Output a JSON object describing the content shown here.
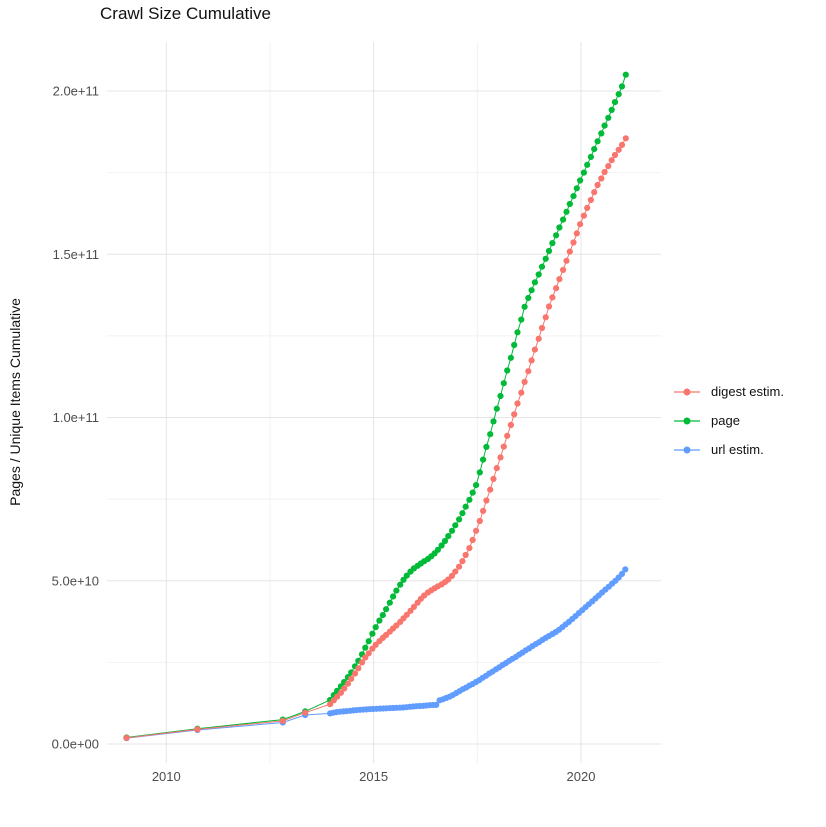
{
  "page": {
    "title": "Crawl Size Cumulative"
  },
  "palette": {
    "digest": "#F8766D",
    "page": "#00BA38",
    "url": "#619CFF",
    "grid_major": "#E5E5E5",
    "grid_minor": "#F2F2F2",
    "tick_label": "#4D4D4D",
    "title_text": "#111111"
  },
  "chart_data": {
    "type": "scatter",
    "title": "Crawl Size Cumulative",
    "xlabel": "",
    "ylabel": "Pages / Unique Items Cumulative",
    "grid": true,
    "legend_position": "right",
    "units_note": "y values stored in billions (1e9); y axis shown in scientific notation",
    "xlim": [
      2008.57,
      2021.93
    ],
    "ylim_e9": [
      -5.8,
      215
    ],
    "x_ticks": [
      {
        "value": 2010,
        "label": "2010"
      },
      {
        "value": 2015,
        "label": "2015"
      },
      {
        "value": 2020,
        "label": "2020"
      }
    ],
    "x_minor": [
      2012.5,
      2017.5
    ],
    "y_ticks": [
      {
        "value": 0,
        "label": "0.0e+00"
      },
      {
        "value": 50,
        "label": "5.0e+10"
      },
      {
        "value": 100,
        "label": "1.0e+11"
      },
      {
        "value": 150,
        "label": "1.5e+11"
      },
      {
        "value": 200,
        "label": "2.0e+11"
      }
    ],
    "y_minor": [
      25,
      75,
      125,
      175
    ],
    "legend": [
      {
        "id": "digest",
        "label": "digest estim."
      },
      {
        "id": "page",
        "label": "page"
      },
      {
        "id": "url",
        "label": "url estim."
      }
    ],
    "series": [
      {
        "name": "page",
        "color_id": "page",
        "points": [
          [
            2009.04,
            2.0
          ],
          [
            2010.75,
            4.7
          ],
          [
            2012.81,
            7.5
          ],
          [
            2013.35,
            10.0
          ],
          [
            2013.95,
            13.5
          ],
          [
            2014.04,
            15.0
          ],
          [
            2014.12,
            16.3
          ],
          [
            2014.21,
            17.7
          ],
          [
            2014.29,
            19.0
          ],
          [
            2014.38,
            20.5
          ],
          [
            2014.46,
            21.9
          ],
          [
            2014.55,
            23.8
          ],
          [
            2014.63,
            25.5
          ],
          [
            2014.72,
            27.5
          ],
          [
            2014.8,
            29.5
          ],
          [
            2014.88,
            31.5
          ],
          [
            2014.97,
            33.8
          ],
          [
            2015.05,
            35.8
          ],
          [
            2015.14,
            37.8
          ],
          [
            2015.22,
            39.5
          ],
          [
            2015.3,
            41.3
          ],
          [
            2015.39,
            43.3
          ],
          [
            2015.47,
            45.2
          ],
          [
            2015.55,
            47.0
          ],
          [
            2015.64,
            48.8
          ],
          [
            2015.72,
            50.3
          ],
          [
            2015.8,
            51.6
          ],
          [
            2015.89,
            52.8
          ],
          [
            2015.97,
            53.8
          ],
          [
            2016.06,
            54.6
          ],
          [
            2016.14,
            55.3
          ],
          [
            2016.22,
            56.0
          ],
          [
            2016.31,
            56.7
          ],
          [
            2016.39,
            57.5
          ],
          [
            2016.47,
            58.4
          ],
          [
            2016.55,
            59.5
          ],
          [
            2016.64,
            60.8
          ],
          [
            2016.72,
            62.2
          ],
          [
            2016.8,
            63.7
          ],
          [
            2016.89,
            65.3
          ],
          [
            2016.97,
            67.0
          ],
          [
            2017.06,
            68.8
          ],
          [
            2017.14,
            70.7
          ],
          [
            2017.22,
            72.7
          ],
          [
            2017.31,
            74.8
          ],
          [
            2017.39,
            77.0
          ],
          [
            2017.47,
            79.3
          ],
          [
            2017.56,
            83.2
          ],
          [
            2017.64,
            87.1
          ],
          [
            2017.72,
            91.0
          ],
          [
            2017.81,
            94.9
          ],
          [
            2017.89,
            98.8
          ],
          [
            2017.97,
            102.7
          ],
          [
            2018.06,
            106.6
          ],
          [
            2018.14,
            110.5
          ],
          [
            2018.22,
            114.4
          ],
          [
            2018.31,
            118.3
          ],
          [
            2018.39,
            122.2
          ],
          [
            2018.47,
            126.1
          ],
          [
            2018.56,
            130.0
          ],
          [
            2018.64,
            133.9
          ],
          [
            2018.73,
            136.6
          ],
          [
            2018.81,
            139.0
          ],
          [
            2018.89,
            141.4
          ],
          [
            2018.98,
            143.8
          ],
          [
            2019.06,
            146.2
          ],
          [
            2019.15,
            148.6
          ],
          [
            2019.23,
            151.0
          ],
          [
            2019.31,
            153.4
          ],
          [
            2019.4,
            155.8
          ],
          [
            2019.48,
            158.2
          ],
          [
            2019.57,
            160.6
          ],
          [
            2019.65,
            163.0
          ],
          [
            2019.73,
            165.4
          ],
          [
            2019.82,
            167.8
          ],
          [
            2019.9,
            170.2
          ],
          [
            2019.98,
            172.6
          ],
          [
            2020.07,
            175.0
          ],
          [
            2020.15,
            177.4
          ],
          [
            2020.24,
            179.8
          ],
          [
            2020.32,
            182.2
          ],
          [
            2020.4,
            184.6
          ],
          [
            2020.49,
            187.0
          ],
          [
            2020.57,
            189.4
          ],
          [
            2020.66,
            191.8
          ],
          [
            2020.74,
            194.2
          ],
          [
            2020.82,
            196.6
          ],
          [
            2020.91,
            199.0
          ],
          [
            2020.99,
            201.4
          ],
          [
            2021.08,
            205.0
          ]
        ]
      },
      {
        "name": "url estim.",
        "color_id": "url",
        "points": [
          [
            2009.04,
            1.8
          ],
          [
            2010.75,
            4.3
          ],
          [
            2012.81,
            6.6
          ],
          [
            2013.35,
            8.9
          ],
          [
            2013.95,
            9.4
          ],
          [
            2014.03,
            9.6
          ],
          [
            2014.11,
            9.8
          ],
          [
            2014.19,
            9.9
          ],
          [
            2014.27,
            10.0
          ],
          [
            2014.35,
            10.1
          ],
          [
            2014.43,
            10.2
          ],
          [
            2014.51,
            10.3
          ],
          [
            2014.59,
            10.4
          ],
          [
            2014.67,
            10.5
          ],
          [
            2014.75,
            10.55
          ],
          [
            2014.83,
            10.6
          ],
          [
            2014.91,
            10.7
          ],
          [
            2014.99,
            10.75
          ],
          [
            2015.07,
            10.8
          ],
          [
            2015.15,
            10.85
          ],
          [
            2015.23,
            10.9
          ],
          [
            2015.31,
            10.95
          ],
          [
            2015.39,
            11.0
          ],
          [
            2015.47,
            11.05
          ],
          [
            2015.55,
            11.1
          ],
          [
            2015.63,
            11.15
          ],
          [
            2015.71,
            11.2
          ],
          [
            2015.79,
            11.3
          ],
          [
            2015.87,
            11.4
          ],
          [
            2015.95,
            11.5
          ],
          [
            2016.03,
            11.6
          ],
          [
            2016.11,
            11.65
          ],
          [
            2016.19,
            11.7
          ],
          [
            2016.27,
            11.8
          ],
          [
            2016.35,
            11.9
          ],
          [
            2016.43,
            11.95
          ],
          [
            2016.51,
            12.0
          ],
          [
            2016.59,
            13.4
          ],
          [
            2016.67,
            13.7
          ],
          [
            2016.75,
            14.1
          ],
          [
            2016.83,
            14.5
          ],
          [
            2016.91,
            15.0
          ],
          [
            2016.99,
            15.6
          ],
          [
            2017.07,
            16.2
          ],
          [
            2017.15,
            16.8
          ],
          [
            2017.23,
            17.3
          ],
          [
            2017.31,
            17.9
          ],
          [
            2017.39,
            18.4
          ],
          [
            2017.47,
            19.0
          ],
          [
            2017.55,
            19.6
          ],
          [
            2017.63,
            20.3
          ],
          [
            2017.71,
            20.9
          ],
          [
            2017.79,
            21.6
          ],
          [
            2017.87,
            22.2
          ],
          [
            2017.95,
            22.9
          ],
          [
            2018.03,
            23.5
          ],
          [
            2018.11,
            24.2
          ],
          [
            2018.19,
            24.8
          ],
          [
            2018.27,
            25.5
          ],
          [
            2018.35,
            26.1
          ],
          [
            2018.43,
            26.7
          ],
          [
            2018.51,
            27.4
          ],
          [
            2018.59,
            28.0
          ],
          [
            2018.67,
            28.7
          ],
          [
            2018.75,
            29.3
          ],
          [
            2018.83,
            30.0
          ],
          [
            2018.91,
            30.6
          ],
          [
            2018.99,
            31.2
          ],
          [
            2019.07,
            31.9
          ],
          [
            2019.15,
            32.5
          ],
          [
            2019.23,
            33.1
          ],
          [
            2019.31,
            33.7
          ],
          [
            2019.39,
            34.3
          ],
          [
            2019.47,
            35.0
          ],
          [
            2019.55,
            35.8
          ],
          [
            2019.63,
            36.6
          ],
          [
            2019.71,
            37.4
          ],
          [
            2019.79,
            38.3
          ],
          [
            2019.87,
            39.2
          ],
          [
            2019.95,
            40.1
          ],
          [
            2020.03,
            41.0
          ],
          [
            2020.11,
            41.9
          ],
          [
            2020.19,
            42.8
          ],
          [
            2020.27,
            43.7
          ],
          [
            2020.35,
            44.6
          ],
          [
            2020.43,
            45.5
          ],
          [
            2020.51,
            46.4
          ],
          [
            2020.59,
            47.3
          ],
          [
            2020.67,
            48.2
          ],
          [
            2020.75,
            49.1
          ],
          [
            2020.83,
            50.0
          ],
          [
            2020.91,
            51.0
          ],
          [
            2020.99,
            52.1
          ],
          [
            2021.07,
            53.5
          ]
        ]
      },
      {
        "name": "digest estim.",
        "color_id": "digest",
        "points": [
          [
            2009.04,
            1.9
          ],
          [
            2010.75,
            4.5
          ],
          [
            2012.81,
            7.1
          ],
          [
            2013.35,
            9.6
          ],
          [
            2013.95,
            12.2
          ],
          [
            2014.04,
            13.4
          ],
          [
            2014.12,
            14.5
          ],
          [
            2014.21,
            15.7
          ],
          [
            2014.29,
            17.0
          ],
          [
            2014.38,
            18.5
          ],
          [
            2014.46,
            20.0
          ],
          [
            2014.55,
            21.6
          ],
          [
            2014.63,
            23.2
          ],
          [
            2014.72,
            25.0
          ],
          [
            2014.8,
            26.5
          ],
          [
            2014.88,
            27.8
          ],
          [
            2014.97,
            29.2
          ],
          [
            2015.05,
            30.4
          ],
          [
            2015.14,
            31.5
          ],
          [
            2015.22,
            32.5
          ],
          [
            2015.3,
            33.4
          ],
          [
            2015.39,
            34.4
          ],
          [
            2015.47,
            35.4
          ],
          [
            2015.55,
            36.3
          ],
          [
            2015.64,
            37.4
          ],
          [
            2015.72,
            38.5
          ],
          [
            2015.8,
            39.6
          ],
          [
            2015.89,
            40.8
          ],
          [
            2015.97,
            42.0
          ],
          [
            2016.06,
            43.3
          ],
          [
            2016.14,
            44.5
          ],
          [
            2016.22,
            45.5
          ],
          [
            2016.31,
            46.4
          ],
          [
            2016.39,
            47.1
          ],
          [
            2016.47,
            47.7
          ],
          [
            2016.55,
            48.3
          ],
          [
            2016.64,
            48.9
          ],
          [
            2016.72,
            49.6
          ],
          [
            2016.8,
            50.4
          ],
          [
            2016.89,
            51.5
          ],
          [
            2016.97,
            52.8
          ],
          [
            2017.06,
            54.3
          ],
          [
            2017.14,
            56.0
          ],
          [
            2017.22,
            57.9
          ],
          [
            2017.31,
            60.0
          ],
          [
            2017.39,
            62.5
          ],
          [
            2017.47,
            65.3
          ],
          [
            2017.56,
            68.3
          ],
          [
            2017.64,
            71.4
          ],
          [
            2017.72,
            74.6
          ],
          [
            2017.81,
            77.9
          ],
          [
            2017.89,
            81.2
          ],
          [
            2017.97,
            84.5
          ],
          [
            2018.06,
            87.8
          ],
          [
            2018.14,
            91.1
          ],
          [
            2018.22,
            94.4
          ],
          [
            2018.31,
            97.7
          ],
          [
            2018.39,
            101.0
          ],
          [
            2018.47,
            104.3
          ],
          [
            2018.56,
            107.6
          ],
          [
            2018.64,
            110.9
          ],
          [
            2018.73,
            114.2
          ],
          [
            2018.81,
            117.5
          ],
          [
            2018.89,
            120.8
          ],
          [
            2018.98,
            124.1
          ],
          [
            2019.06,
            127.4
          ],
          [
            2019.15,
            130.7
          ],
          [
            2019.23,
            134.0
          ],
          [
            2019.31,
            136.8
          ],
          [
            2019.4,
            139.6
          ],
          [
            2019.48,
            142.4
          ],
          [
            2019.57,
            145.2
          ],
          [
            2019.65,
            148.0
          ],
          [
            2019.73,
            150.8
          ],
          [
            2019.82,
            153.6
          ],
          [
            2019.9,
            156.4
          ],
          [
            2019.98,
            159.2
          ],
          [
            2020.07,
            161.8
          ],
          [
            2020.15,
            164.2
          ],
          [
            2020.24,
            166.6
          ],
          [
            2020.32,
            169.0
          ],
          [
            2020.4,
            171.2
          ],
          [
            2020.49,
            173.2
          ],
          [
            2020.57,
            175.2
          ],
          [
            2020.66,
            177.0
          ],
          [
            2020.74,
            178.8
          ],
          [
            2020.82,
            180.4
          ],
          [
            2020.91,
            182.0
          ],
          [
            2020.99,
            183.5
          ],
          [
            2021.08,
            185.5
          ]
        ]
      }
    ]
  }
}
